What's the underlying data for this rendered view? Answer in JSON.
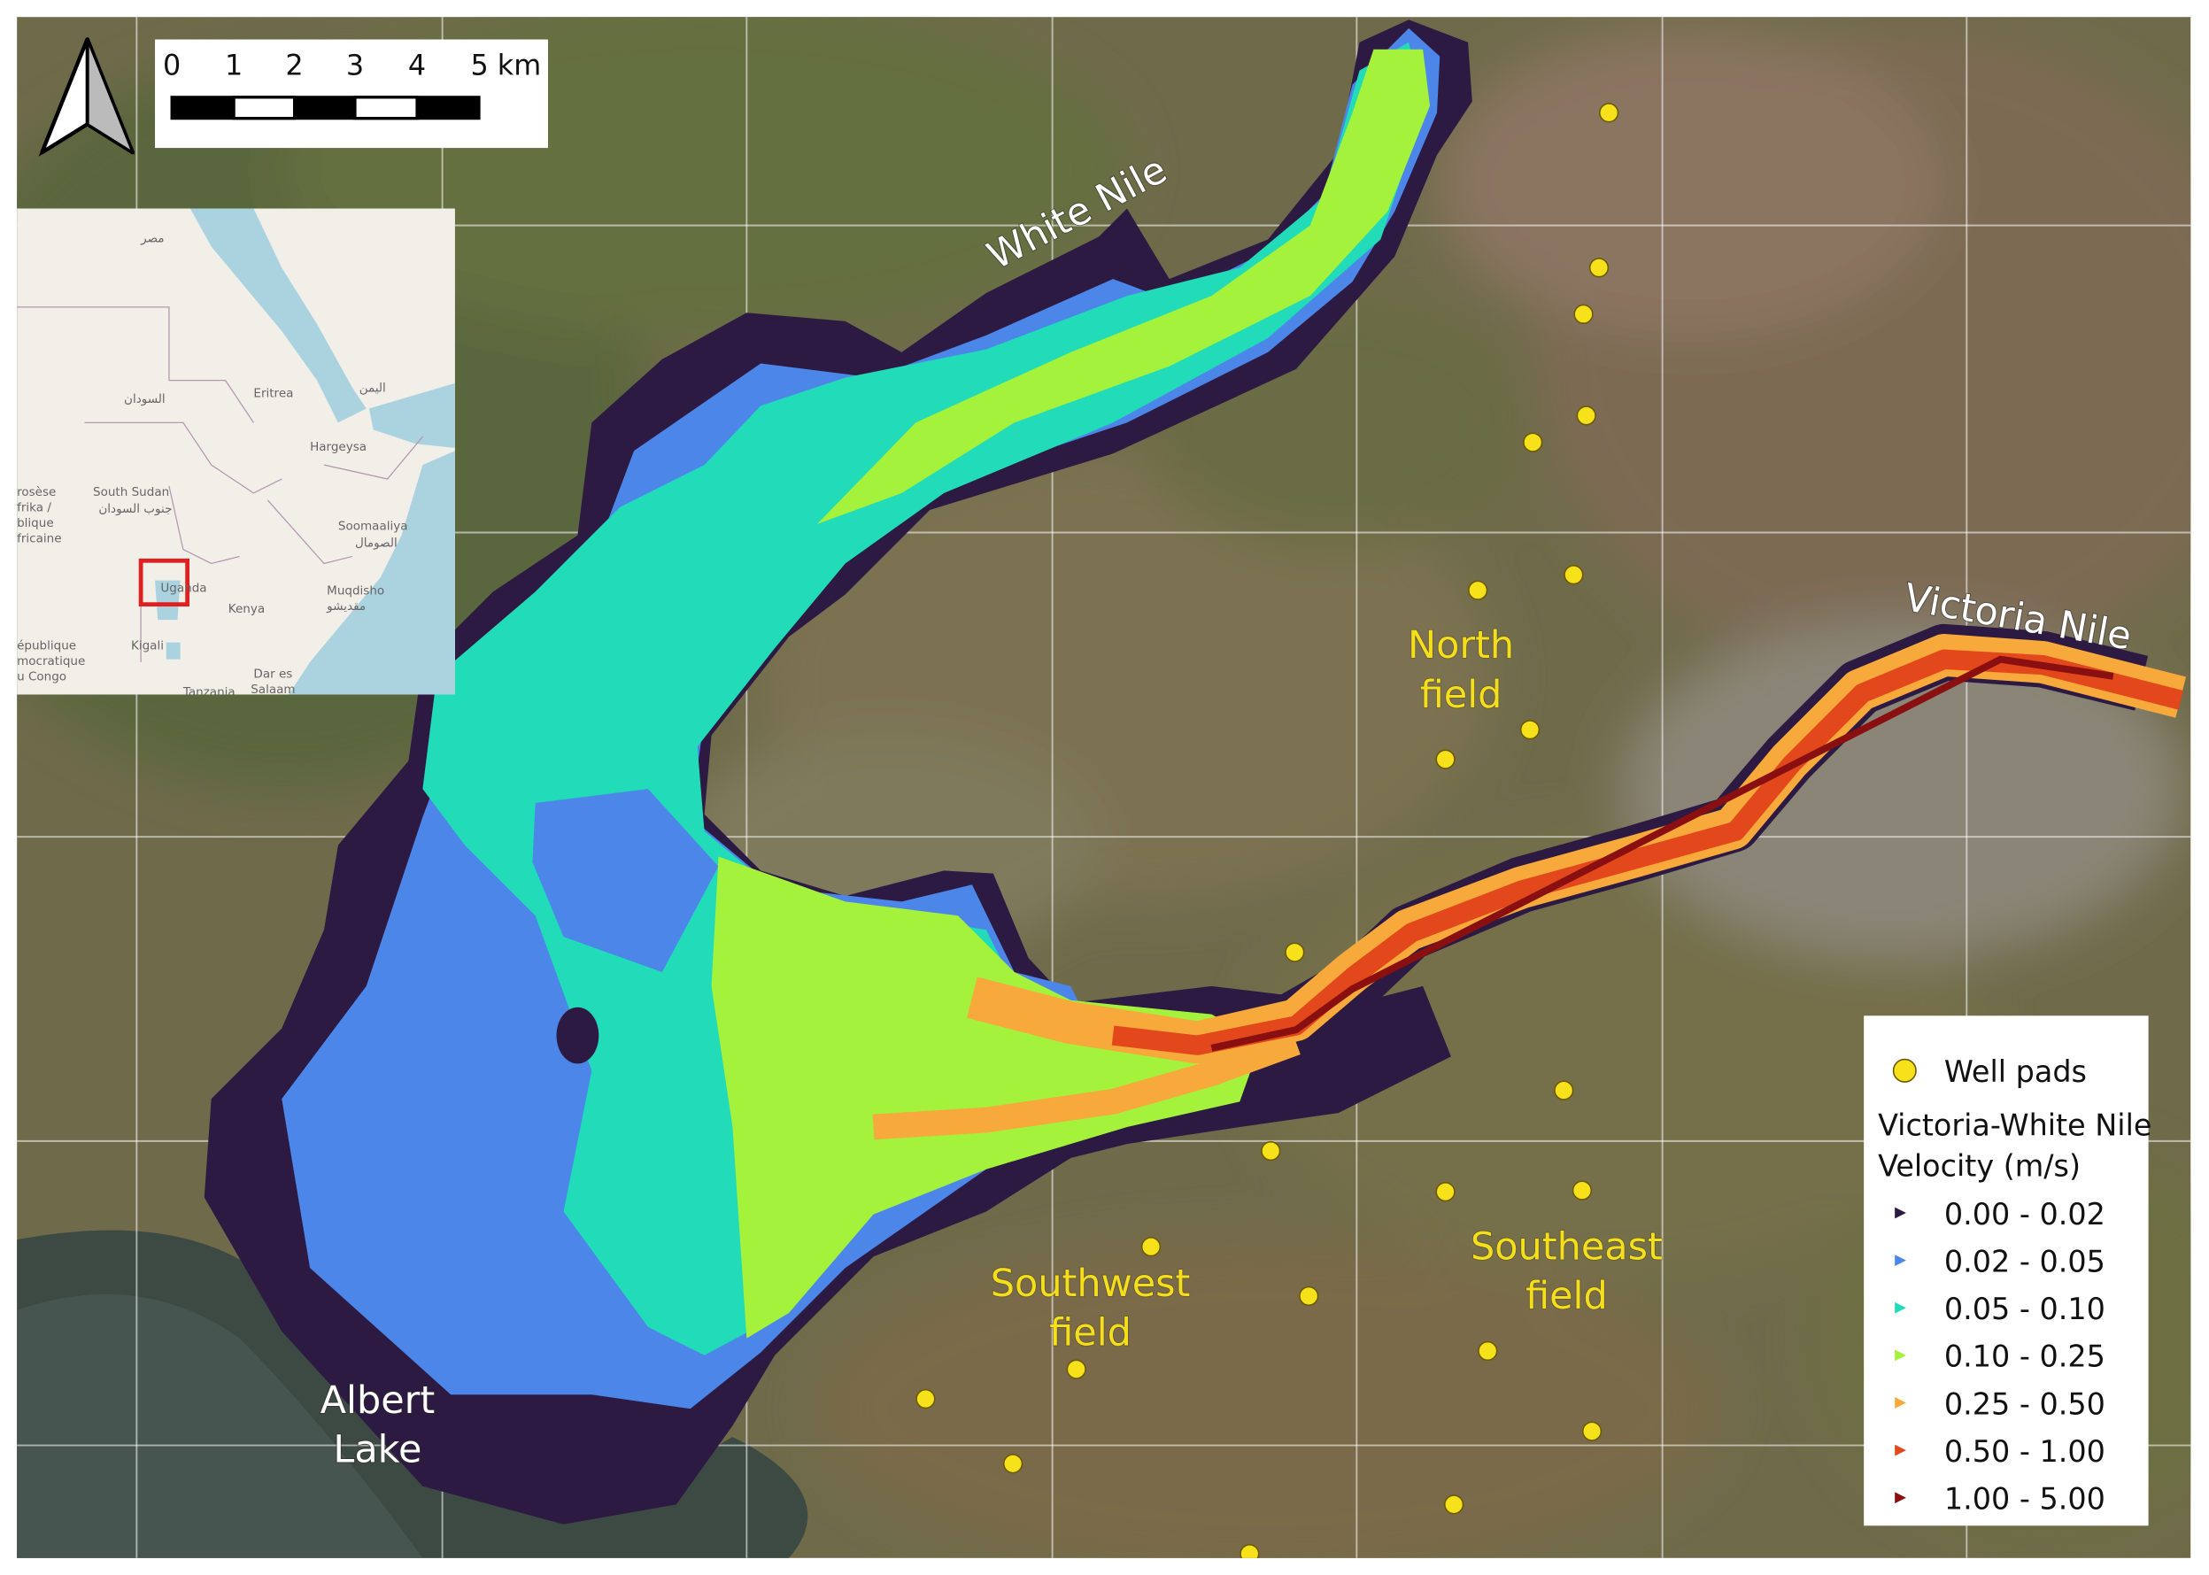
{
  "scale_bar": {
    "labels": [
      "0",
      "1",
      "2",
      "3",
      "4",
      "5 km"
    ]
  },
  "inset_map": {
    "labels": [
      "مصر",
      "السودان",
      "Eritrea",
      "اليمن",
      "Hargeysa",
      "South Sudan",
      "جنوب السودان",
      "Soomaaliya",
      "الصومال",
      "Uganda",
      "Kenya",
      "Muqdisho",
      "مقديشو",
      "Kigali",
      "Tanzania",
      "Dar es",
      "Salaam",
      "rosèse",
      "frika /",
      "blique",
      "fricaine",
      "épublique",
      "mocratique",
      "u Congo"
    ]
  },
  "places": {
    "white_nile": "White Nile",
    "victoria_nile": "Victoria Nile",
    "albert_lake": [
      "Albert",
      "Lake"
    ],
    "north_field": [
      "North",
      "field"
    ],
    "southwest_field": [
      "Southwest",
      "field"
    ],
    "southeast_field": [
      "Southeast",
      "field"
    ]
  },
  "legend": {
    "well_pads": "Well pads",
    "title": [
      "Victoria-White Nile",
      "Velocity (m/s)"
    ],
    "classes": [
      {
        "label": "0.00 - 0.02",
        "color": "#2c1a42"
      },
      {
        "label": "0.02 - 0.05",
        "color": "#4b86e8"
      },
      {
        "label": "0.05 - 0.10",
        "color": "#22dbb8"
      },
      {
        "label": "0.10 - 0.25",
        "color": "#a4f23b"
      },
      {
        "label": "0.25 - 0.50",
        "color": "#f7a93c"
      },
      {
        "label": "0.50 - 1.00",
        "color": "#e2481b"
      },
      {
        "label": "1.00 - 5.00",
        "color": "#8a0f10"
      }
    ]
  }
}
